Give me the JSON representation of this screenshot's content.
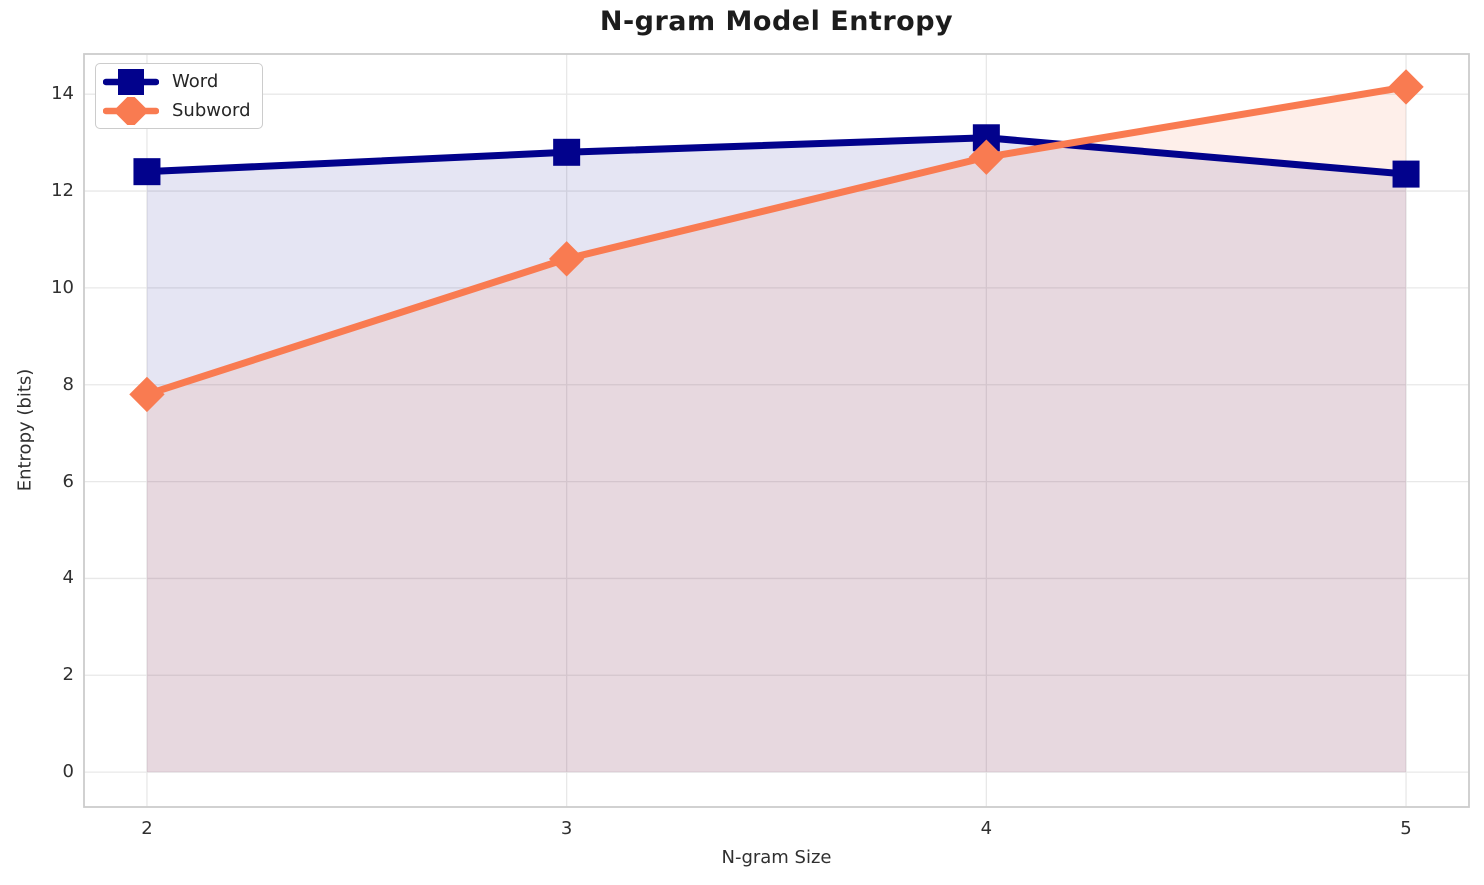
{
  "chart_data": {
    "type": "line",
    "title": "N-gram Model Entropy",
    "xlabel": "N-gram Size",
    "ylabel": "Entropy (bits)",
    "x": [
      2,
      3,
      4,
      5
    ],
    "series": [
      {
        "name": "Word",
        "color": "#02028C",
        "marker": "square",
        "values": [
          12.4,
          12.8,
          13.1,
          12.35
        ],
        "fill_alpha": 0.1
      },
      {
        "name": "Subword",
        "color": "#F97B51",
        "marker": "diamond",
        "values": [
          7.8,
          10.6,
          12.7,
          14.15
        ],
        "fill_alpha": 0.12
      }
    ],
    "fill_to": 0,
    "xticks": [
      2,
      3,
      4,
      5
    ],
    "yticks": [
      0,
      2,
      4,
      6,
      8,
      10,
      12,
      14
    ],
    "xlim": [
      1.85,
      5.15
    ],
    "ylim": [
      -0.72,
      14.83
    ],
    "grid": true,
    "grid_color": "#e8e8e8",
    "spine_color": "#cccccc",
    "legend_position": "upper-left"
  }
}
